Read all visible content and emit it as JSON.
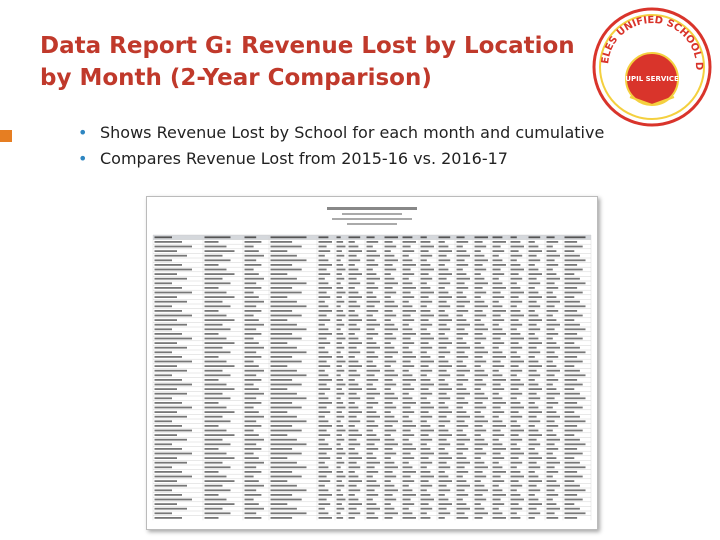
{
  "slide": {
    "title_line1": "Data Report G: Revenue Lost by Location",
    "title_line2": "by Month (2-Year Comparison)",
    "bullets": [
      "Shows Revenue Lost by School for each month and cumulative",
      "Compares Revenue Lost from 2015-16 vs. 2016-17"
    ]
  },
  "logo": {
    "name": "Los Angeles Unified School District - Pupil Services seal",
    "seal_text": "LOS ANGELES UNIFIED SCHOOL DISTRICT",
    "center_text": "PUPIL SERVICES"
  },
  "colors": {
    "title": "#c0392b",
    "bullet": "#2e86c1",
    "accent": "#e67e22",
    "seal_red": "#d9342b",
    "seal_yellow": "#f4d03f"
  },
  "report_image": {
    "description_visible": "Scanned spreadsheet of revenue lost by location (illegible)"
  }
}
